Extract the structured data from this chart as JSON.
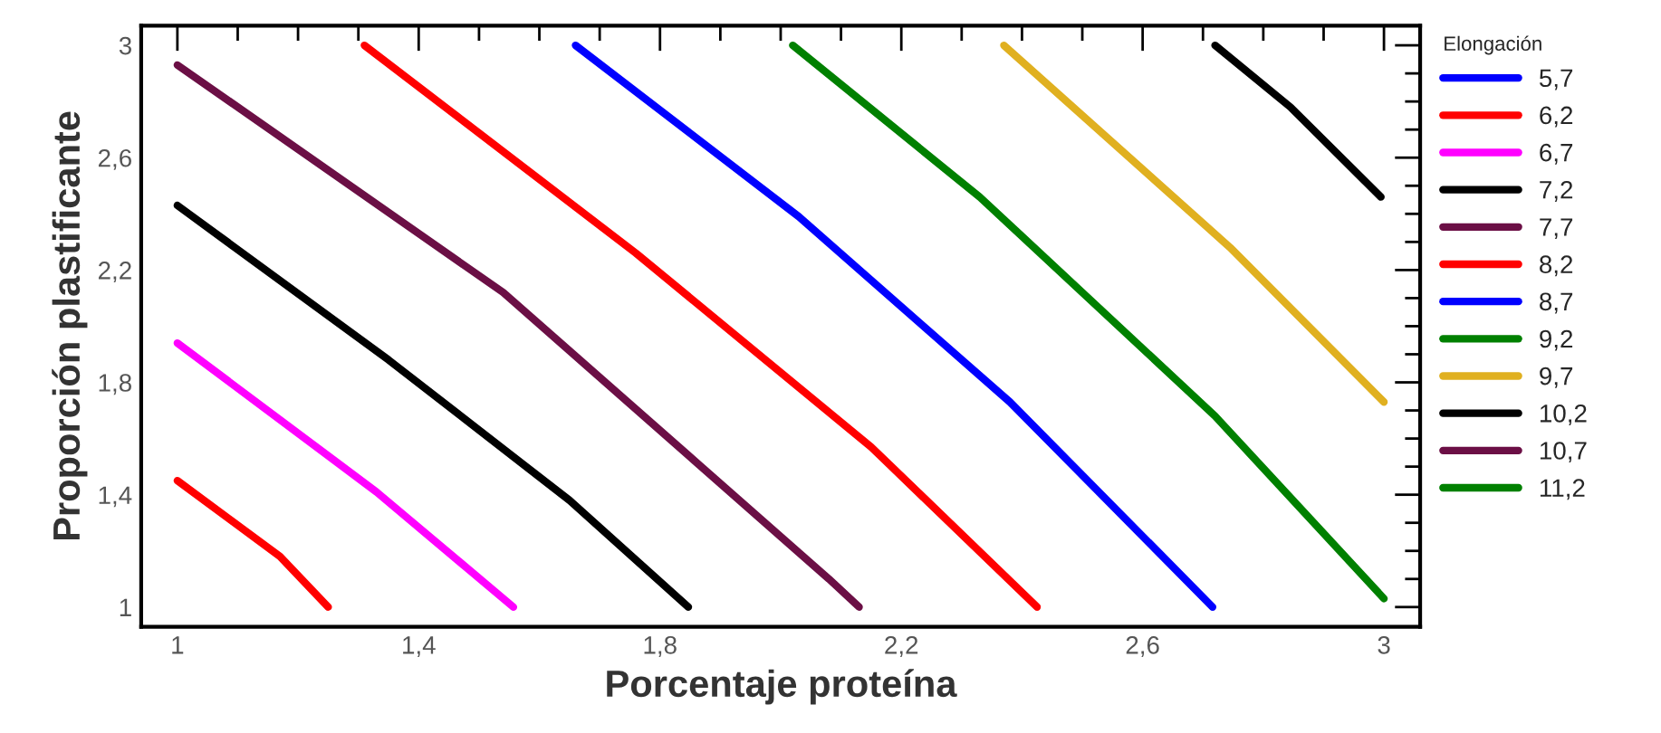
{
  "chart_data": {
    "type": "line",
    "xlabel": "Porcentaje proteína",
    "ylabel": "Proporción plastificante",
    "legend_title": "Elongación",
    "legend": "right",
    "marker": "none",
    "line_style": "solid",
    "grid": false,
    "xlim": [
      0.94,
      3.06
    ],
    "ylim": [
      0.93,
      3.07
    ],
    "xticks": [
      {
        "value": 1,
        "label": "1"
      },
      {
        "value": 1.1,
        "label": null
      },
      {
        "value": 1.2,
        "label": null
      },
      {
        "value": 1.3,
        "label": null
      },
      {
        "value": 1.4,
        "label": "1,4"
      },
      {
        "value": 1.5,
        "label": null
      },
      {
        "value": 1.6,
        "label": null
      },
      {
        "value": 1.7,
        "label": null
      },
      {
        "value": 1.8,
        "label": "1,8"
      },
      {
        "value": 1.9,
        "label": null
      },
      {
        "value": 2.0,
        "label": null
      },
      {
        "value": 2.1,
        "label": null
      },
      {
        "value": 2.2,
        "label": "2,2"
      },
      {
        "value": 2.3,
        "label": null
      },
      {
        "value": 2.4,
        "label": null
      },
      {
        "value": 2.5,
        "label": null
      },
      {
        "value": 2.6,
        "label": "2,6"
      },
      {
        "value": 2.7,
        "label": null
      },
      {
        "value": 2.8,
        "label": null
      },
      {
        "value": 2.9,
        "label": null
      },
      {
        "value": 3,
        "label": "3"
      }
    ],
    "yticks": [
      {
        "value": 1,
        "label": "1"
      },
      {
        "value": 1.1,
        "label": null
      },
      {
        "value": 1.2,
        "label": null
      },
      {
        "value": 1.3,
        "label": null
      },
      {
        "value": 1.4,
        "label": "1,4"
      },
      {
        "value": 1.5,
        "label": null
      },
      {
        "value": 1.6,
        "label": null
      },
      {
        "value": 1.7,
        "label": null
      },
      {
        "value": 1.8,
        "label": "1,8"
      },
      {
        "value": 1.9,
        "label": null
      },
      {
        "value": 2.0,
        "label": null
      },
      {
        "value": 2.1,
        "label": null
      },
      {
        "value": 2.2,
        "label": "2,2"
      },
      {
        "value": 2.3,
        "label": null
      },
      {
        "value": 2.4,
        "label": null
      },
      {
        "value": 2.5,
        "label": null
      },
      {
        "value": 2.6,
        "label": "2,6"
      },
      {
        "value": 2.7,
        "label": null
      },
      {
        "value": 2.8,
        "label": null
      },
      {
        "value": 2.9,
        "label": null
      },
      {
        "value": 3,
        "label": "3"
      }
    ],
    "series": [
      {
        "name": "5,7",
        "color": "#0000ff"
      },
      {
        "name": "6,2",
        "color": "#ff0000",
        "x": [
          1.0,
          1.17,
          1.25
        ],
        "values": [
          1.45,
          1.18,
          1.0
        ]
      },
      {
        "name": "6,7",
        "color": "#ff00ff",
        "x": [
          1.0,
          1.33,
          1.557
        ],
        "values": [
          1.94,
          1.41,
          1.0
        ]
      },
      {
        "name": "7,2",
        "color": "#000000",
        "x": [
          1.0,
          1.35,
          1.65,
          1.847
        ],
        "values": [
          2.43,
          1.88,
          1.38,
          1.0
        ]
      },
      {
        "name": "7,7",
        "color": "#6b0f45",
        "x": [
          1.0,
          1.54,
          2.08,
          2.13
        ],
        "values": [
          2.93,
          2.12,
          1.1,
          1.0
        ]
      },
      {
        "name": "8,2",
        "color": "#ff0000",
        "x": [
          1.31,
          1.76,
          2.15,
          2.425
        ],
        "values": [
          3.0,
          2.26,
          1.57,
          1.0
        ]
      },
      {
        "name": "8,7",
        "color": "#0000ff",
        "x": [
          1.66,
          2.03,
          2.38,
          2.716
        ],
        "values": [
          3.0,
          2.39,
          1.73,
          1.0
        ]
      },
      {
        "name": "9,2",
        "color": "#008000",
        "x": [
          2.02,
          2.33,
          2.72,
          3.0
        ],
        "values": [
          3.0,
          2.46,
          1.68,
          1.03
        ]
      },
      {
        "name": "9,7",
        "color": "#e0b020",
        "x": [
          2.37,
          2.745,
          3.0
        ],
        "values": [
          3.0,
          2.28,
          1.73
        ]
      },
      {
        "name": "10,2",
        "color": "#000000",
        "x": [
          2.72,
          2.845,
          2.995
        ],
        "values": [
          3.0,
          2.78,
          2.46
        ]
      },
      {
        "name": "10,7",
        "color": "#6b0f45"
      },
      {
        "name": "11,2",
        "color": "#008000"
      }
    ]
  }
}
